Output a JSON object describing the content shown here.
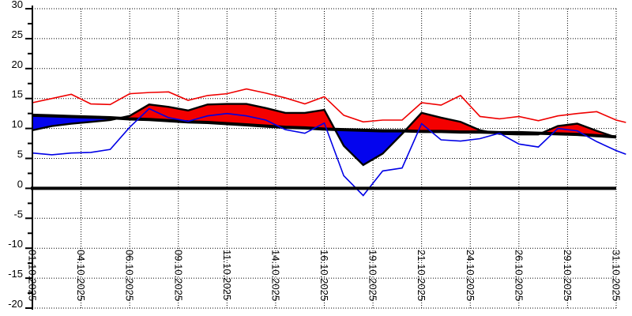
{
  "chart_data": {
    "type": "line",
    "title": "",
    "xlabel": "",
    "ylabel": "",
    "ylim": [
      -20,
      30
    ],
    "y_major_tick_step": 5,
    "y_minor_tick_step": 2.5,
    "y_tick_labels": [
      "30",
      "25",
      "20",
      "15",
      "10",
      "5",
      "0",
      "-5",
      "-10",
      "-15",
      "-20"
    ],
    "grid": "dotted",
    "zero_line": true,
    "legend_position": "none",
    "x_gridline_days": [
      1,
      3.5,
      6,
      8.5,
      11,
      13.5,
      16,
      18.5,
      21,
      23.5,
      26,
      28.5,
      31
    ],
    "x_gridline_labels": [
      "01.10.2025",
      "04.10.2025",
      "06.10.2025",
      "09.10.2025",
      "11.10.2025",
      "14.10.2025",
      "16.10.2025",
      "19.10.2025",
      "21.10.2025",
      "24.10.2025",
      "26.10.2025",
      "29.10.2025",
      "31.10.2025"
    ],
    "days": [
      1,
      2,
      3,
      4,
      5,
      6,
      7,
      8,
      9,
      10,
      11,
      12,
      13,
      14,
      15,
      16,
      17,
      18,
      19,
      20,
      21,
      22,
      23,
      24,
      25,
      26,
      27,
      28,
      29,
      30,
      31
    ],
    "series": [
      {
        "name": "daily_max",
        "color_key": "red_line",
        "style": "thin",
        "values": [
          14.3,
          15.0,
          15.7,
          14.1,
          14.0,
          15.8,
          16.0,
          16.1,
          14.7,
          15.5,
          15.8,
          16.6,
          15.9,
          15.1,
          14.1,
          15.3,
          12.2,
          11.1,
          11.4,
          11.4,
          14.3,
          13.9,
          15.5,
          12.0,
          11.6,
          12.0,
          11.3,
          12.1,
          12.5,
          12.8,
          11.4
        ]
      },
      {
        "name": "daily_min",
        "color_key": "blue_line",
        "style": "thin",
        "values": [
          5.9,
          5.6,
          5.9,
          6.0,
          6.5,
          10.2,
          13.3,
          11.8,
          11.2,
          12.1,
          12.5,
          12.1,
          11.4,
          9.8,
          9.2,
          10.9,
          2.1,
          -1.2,
          2.9,
          3.4,
          10.8,
          8.1,
          7.9,
          8.3,
          9.2,
          7.4,
          6.9,
          10.0,
          9.6,
          7.8,
          6.3
        ]
      },
      {
        "name": "daily_mean",
        "color_key": "black",
        "style": "medium",
        "values": [
          9.7,
          10.4,
          10.8,
          11.1,
          11.4,
          12.1,
          14.0,
          13.6,
          13.0,
          14.0,
          14.1,
          14.1,
          13.4,
          12.6,
          12.6,
          13.1,
          7.1,
          3.9,
          5.8,
          9.1,
          12.6,
          11.8,
          11.1,
          9.7,
          9.1,
          9.0,
          9.0,
          10.4,
          10.8,
          9.6,
          8.5
        ]
      },
      {
        "name": "climate_normal",
        "color_key": "black",
        "style": "thick",
        "values": [
          12.2,
          12.1,
          12.0,
          11.9,
          11.8,
          11.6,
          11.5,
          11.3,
          11.1,
          11.0,
          10.8,
          10.6,
          10.4,
          10.2,
          10.1,
          9.9,
          9.8,
          9.7,
          9.6,
          9.6,
          9.5,
          9.5,
          9.4,
          9.4,
          9.3,
          9.3,
          9.2,
          9.1,
          9.0,
          8.8,
          8.6
        ]
      }
    ],
    "deviation_fill": {
      "above_normal_color_key": "red_fill",
      "below_normal_color_key": "blue_fill",
      "between": [
        "daily_mean",
        "climate_normal"
      ]
    },
    "edge_overshoot": {
      "day": 31.5,
      "daily_max": 11.0,
      "daily_min": 5.7
    }
  },
  "colors": {
    "background": "#ffffff",
    "red_line": "#ef0000",
    "red_fill": "#f40000",
    "blue_line": "#0000e6",
    "blue_fill": "#0404ee",
    "black": "#000000",
    "grid": "#000000",
    "label": "#000000"
  },
  "fonts": {
    "tick_label_size": 13
  }
}
